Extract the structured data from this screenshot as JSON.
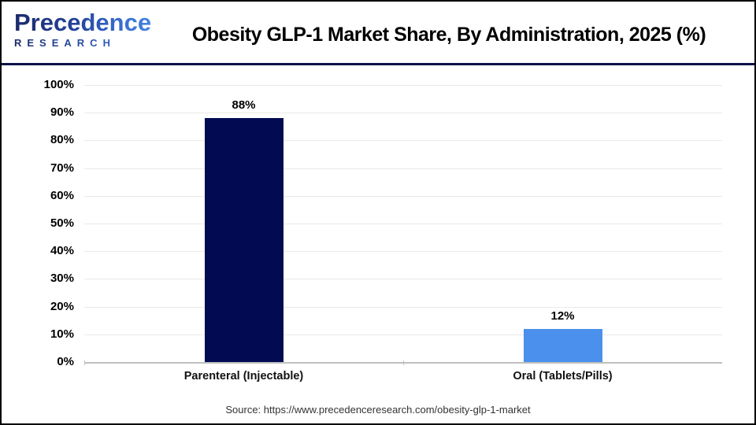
{
  "header": {
    "logo_line1": "Precedence",
    "logo_line2": "RESEARCH",
    "title": "Obesity GLP-1 Market Share, By Administration, 2025 (%)"
  },
  "chart_data": {
    "type": "bar",
    "title": "Obesity GLP-1 Market Share, By Administration, 2025 (%)",
    "categories": [
      "Parenteral (Injectable)",
      "Oral (Tablets/Pills)"
    ],
    "values": [
      88,
      12
    ],
    "value_labels": [
      "88%",
      "12%"
    ],
    "bar_colors": [
      "#020a52",
      "#4a90ec"
    ],
    "xlabel": "",
    "ylabel": "",
    "ylim": [
      0,
      100
    ],
    "ytick_step": 10,
    "ytick_labels": [
      "0%",
      "10%",
      "20%",
      "30%",
      "40%",
      "50%",
      "60%",
      "70%",
      "80%",
      "90%",
      "100%"
    ],
    "grid": true,
    "legend": false
  },
  "footer": {
    "source": "Source: https://www.precedenceresearch.com/obesity-glp-1-market"
  },
  "colors": {
    "bar_parenteral": "#020a52",
    "bar_oral": "#4a90ec",
    "header_rule": "#0d1347",
    "gridline": "#e9e9e6",
    "axis": "#bfbfbf",
    "logo_dark": "#1b2a6b",
    "logo_light": "#4a90e8"
  }
}
